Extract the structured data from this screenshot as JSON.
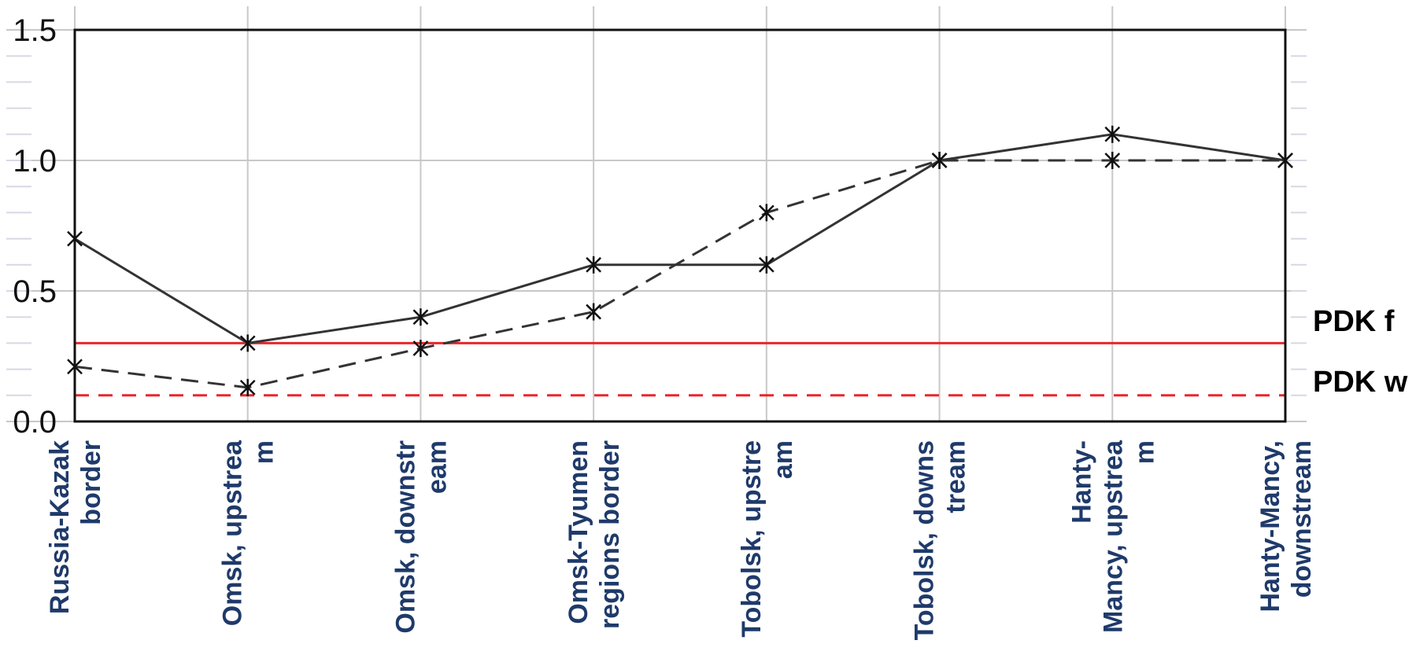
{
  "chart_data": {
    "type": "line",
    "categories": [
      [
        "Russia-Kazak",
        "border"
      ],
      [
        "Omsk, upstrea",
        "m"
      ],
      [
        "Omsk, downstr",
        "eam"
      ],
      [
        "Omsk-Tyumen",
        "regions border"
      ],
      [
        "Tobolsk, upstre",
        "am"
      ],
      [
        "Tobolsk, downs",
        "tream"
      ],
      [
        "Hanty-",
        "Mancy, upstrea",
        "m"
      ],
      [
        "Hanty-Mancy,",
        "downstream"
      ]
    ],
    "series": [
      {
        "style": "solid",
        "color": "#333333",
        "marker": "star",
        "values": [
          0.7,
          0.3,
          0.4,
          0.6,
          0.6,
          1.0,
          1.1,
          1.0
        ]
      },
      {
        "style": "dashed",
        "color": "#333333",
        "marker": "star",
        "values": [
          0.21,
          0.13,
          0.28,
          0.42,
          0.8,
          1.0,
          1.0,
          1.0
        ]
      }
    ],
    "reference_lines": [
      {
        "label": "PDK f",
        "value": 0.3,
        "style": "solid",
        "color": "#e8262b"
      },
      {
        "label": "PDK w",
        "value": 0.1,
        "style": "dashed",
        "color": "#e8262b"
      }
    ],
    "y_ticks": [
      "0.0",
      "0.5",
      "1.0",
      "1.5"
    ],
    "y_tick_values": [
      0,
      0.5,
      1.0,
      1.5
    ],
    "ylim": [
      0,
      1.5
    ],
    "grid": true,
    "title": "",
    "xlabel": "",
    "ylabel": ""
  }
}
